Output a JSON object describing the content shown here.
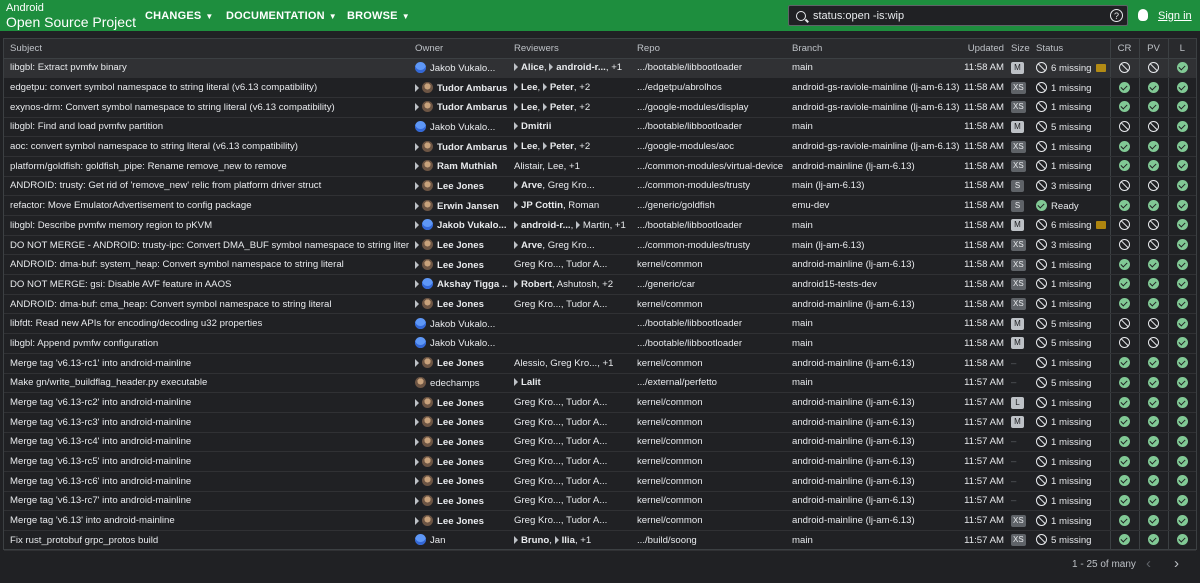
{
  "header": {
    "brand_line1": "Android",
    "brand_line2": "Open Source Project",
    "menus": [
      "CHANGES",
      "DOCUMENTATION",
      "BROWSE"
    ],
    "search_value": "status:open -is:wip",
    "help_glyph": "?",
    "signin": "Sign in"
  },
  "columns": [
    "Subject",
    "Owner",
    "Reviewers",
    "Repo",
    "Branch",
    "Updated",
    "Size",
    "Status",
    "CR",
    "PV",
    "L"
  ],
  "rows": [
    {
      "subject": "libgbl: Extract pvmfw binary",
      "owner": "Jakob Vukalo...",
      "owner_bold": false,
      "owner_arrow": false,
      "avatar": "blue",
      "reviewers": [
        {
          "n": "Alice",
          "b": true,
          "a": true
        },
        {
          "n": "android-r...",
          "b": true,
          "a": true
        },
        {
          "n": "+1",
          "b": false,
          "a": false
        }
      ],
      "repo": ".../bootable/libbootloader",
      "branch": "main",
      "updated": "11:58 AM",
      "size": "M",
      "status": "6 missing",
      "status_ok": false,
      "comment": true,
      "hl": true
    },
    {
      "subject": "edgetpu: convert symbol namespace to string literal (v6.13 compatibility)",
      "owner": "Tudor Ambarus",
      "owner_bold": true,
      "owner_arrow": true,
      "avatar": "photo",
      "reviewers": [
        {
          "n": "Lee",
          "b": true,
          "a": true
        },
        {
          "n": "Peter",
          "b": true,
          "a": true
        },
        {
          "n": "+2",
          "b": false,
          "a": false
        }
      ],
      "repo": ".../edgetpu/abrolhos",
      "branch": "android-gs-raviole-mainline (lj-am-6.13)",
      "updated": "11:58 AM",
      "size": "XS",
      "status": "1 missing",
      "status_ok": false,
      "comment": false,
      "hl": false
    },
    {
      "subject": "exynos-drm: Convert symbol namespace to string literal (v6.13 compatibility)",
      "owner": "Tudor Ambarus",
      "owner_bold": true,
      "owner_arrow": true,
      "avatar": "photo",
      "reviewers": [
        {
          "n": "Lee",
          "b": true,
          "a": true
        },
        {
          "n": "Peter",
          "b": true,
          "a": true
        },
        {
          "n": "+2",
          "b": false,
          "a": false
        }
      ],
      "repo": ".../google-modules/display",
      "branch": "android-gs-raviole-mainline (lj-am-6.13)",
      "updated": "11:58 AM",
      "size": "XS",
      "status": "1 missing",
      "status_ok": false,
      "comment": false,
      "hl": false
    },
    {
      "subject": "libgbl: Find and load pvmfw partition",
      "owner": "Jakob Vukalo...",
      "owner_bold": false,
      "owner_arrow": false,
      "avatar": "blue",
      "reviewers": [
        {
          "n": "Dmitrii",
          "b": true,
          "a": true
        }
      ],
      "repo": ".../bootable/libbootloader",
      "branch": "main",
      "updated": "11:58 AM",
      "size": "M",
      "status": "5 missing",
      "status_ok": false,
      "comment": false,
      "hl": false
    },
    {
      "subject": "aoc: convert symbol namespace to string literal (v6.13 compatibility)",
      "owner": "Tudor Ambarus",
      "owner_bold": true,
      "owner_arrow": true,
      "avatar": "photo",
      "reviewers": [
        {
          "n": "Lee",
          "b": true,
          "a": true
        },
        {
          "n": "Peter",
          "b": true,
          "a": true
        },
        {
          "n": "+2",
          "b": false,
          "a": false
        }
      ],
      "repo": ".../google-modules/aoc",
      "branch": "android-gs-raviole-mainline (lj-am-6.13)",
      "updated": "11:58 AM",
      "size": "XS",
      "status": "1 missing",
      "status_ok": false,
      "comment": false,
      "hl": false
    },
    {
      "subject": "platform/goldfish: goldfish_pipe: Rename remove_new to remove",
      "owner": "Ram Muthiah",
      "owner_bold": true,
      "owner_arrow": true,
      "avatar": "photo",
      "reviewers": [
        {
          "n": "Alistair",
          "b": false,
          "a": false
        },
        {
          "n": "Lee",
          "b": false,
          "a": false
        },
        {
          "n": "+1",
          "b": false,
          "a": false
        }
      ],
      "repo": ".../common-modules/virtual-device",
      "branch": "android-mainline (lj-am-6.13)",
      "updated": "11:58 AM",
      "size": "XS",
      "status": "1 missing",
      "status_ok": false,
      "comment": false,
      "hl": false
    },
    {
      "subject": "ANDROID: trusty: Get rid of 'remove_new' relic from platform driver struct",
      "owner": "Lee Jones",
      "owner_bold": true,
      "owner_arrow": true,
      "avatar": "photo",
      "reviewers": [
        {
          "n": "Arve",
          "b": true,
          "a": true
        },
        {
          "n": "Greg Kro...",
          "b": false,
          "a": false
        }
      ],
      "repo": ".../common-modules/trusty",
      "branch": "main (lj-am-6.13)",
      "updated": "11:58 AM",
      "size": "S",
      "status": "3 missing",
      "status_ok": false,
      "comment": false,
      "hl": false
    },
    {
      "subject": "refactor: Move EmulatorAdvertisement to config package",
      "owner": "Erwin Jansen",
      "owner_bold": true,
      "owner_arrow": true,
      "avatar": "photo",
      "reviewers": [
        {
          "n": "JP Cottin",
          "b": true,
          "a": true
        },
        {
          "n": "Roman",
          "b": false,
          "a": false
        }
      ],
      "repo": ".../generic/goldfish",
      "branch": "emu-dev",
      "updated": "11:58 AM",
      "size": "S",
      "status": "Ready",
      "status_ok": true,
      "comment": false,
      "hl": false
    },
    {
      "subject": "libgbl: Describe pvmfw memory region to pKVM",
      "owner": "Jakob Vukalo...",
      "owner_bold": true,
      "owner_arrow": true,
      "avatar": "blue",
      "reviewers": [
        {
          "n": "android-r...",
          "b": true,
          "a": true
        },
        {
          "n": "Martin",
          "b": false,
          "a": true
        },
        {
          "n": "+1",
          "b": false,
          "a": false
        }
      ],
      "repo": ".../bootable/libbootloader",
      "branch": "main",
      "updated": "11:58 AM",
      "size": "M",
      "status": "6 missing",
      "status_ok": false,
      "comment": true,
      "hl": false
    },
    {
      "subject": "DO NOT MERGE - ANDROID: trusty-ipc: Convert DMA_BUF symbol namespace to string literal",
      "owner": "Lee Jones",
      "owner_bold": true,
      "owner_arrow": true,
      "avatar": "photo",
      "reviewers": [
        {
          "n": "Arve",
          "b": true,
          "a": true
        },
        {
          "n": "Greg Kro...",
          "b": false,
          "a": false
        }
      ],
      "repo": ".../common-modules/trusty",
      "branch": "main (lj-am-6.13)",
      "updated": "11:58 AM",
      "size": "XS",
      "status": "3 missing",
      "status_ok": false,
      "comment": false,
      "hl": false
    },
    {
      "subject": "ANDROID: dma-buf: system_heap: Convert symbol namespace to string literal",
      "owner": "Lee Jones",
      "owner_bold": true,
      "owner_arrow": true,
      "avatar": "photo",
      "reviewers": [
        {
          "n": "Greg Kro...",
          "b": false,
          "a": false
        },
        {
          "n": "Tudor A...",
          "b": false,
          "a": false
        }
      ],
      "repo": "kernel/common",
      "branch": "android-mainline (lj-am-6.13)",
      "updated": "11:58 AM",
      "size": "XS",
      "status": "1 missing",
      "status_ok": false,
      "comment": false,
      "hl": false
    },
    {
      "subject": "DO NOT MERGE: gsi: Disable AVF feature in AAOS",
      "owner": "Akshay Tigga ...",
      "owner_bold": true,
      "owner_arrow": true,
      "avatar": "blue",
      "reviewers": [
        {
          "n": "Robert",
          "b": true,
          "a": true
        },
        {
          "n": "Ashutosh",
          "b": false,
          "a": false
        },
        {
          "n": "+2",
          "b": false,
          "a": false
        }
      ],
      "repo": ".../generic/car",
      "branch": "android15-tests-dev",
      "updated": "11:58 AM",
      "size": "XS",
      "status": "1 missing",
      "status_ok": false,
      "comment": false,
      "hl": false
    },
    {
      "subject": "ANDROID: dma-buf: cma_heap: Convert symbol namespace to string literal",
      "owner": "Lee Jones",
      "owner_bold": true,
      "owner_arrow": true,
      "avatar": "photo",
      "reviewers": [
        {
          "n": "Greg Kro...",
          "b": false,
          "a": false
        },
        {
          "n": "Tudor A...",
          "b": false,
          "a": false
        }
      ],
      "repo": "kernel/common",
      "branch": "android-mainline (lj-am-6.13)",
      "updated": "11:58 AM",
      "size": "XS",
      "status": "1 missing",
      "status_ok": false,
      "comment": false,
      "hl": false
    },
    {
      "subject": "libfdt: Read new APIs for encoding/decoding u32 properties",
      "owner": "Jakob Vukalo...",
      "owner_bold": false,
      "owner_arrow": false,
      "avatar": "blue",
      "reviewers": [],
      "repo": ".../bootable/libbootloader",
      "branch": "main",
      "updated": "11:58 AM",
      "size": "M",
      "status": "5 missing",
      "status_ok": false,
      "comment": false,
      "hl": false
    },
    {
      "subject": "libgbl: Append pvmfw configuration",
      "owner": "Jakob Vukalo...",
      "owner_bold": false,
      "owner_arrow": false,
      "avatar": "blue",
      "reviewers": [],
      "repo": ".../bootable/libbootloader",
      "branch": "main",
      "updated": "11:58 AM",
      "size": "M",
      "status": "5 missing",
      "status_ok": false,
      "comment": false,
      "hl": false
    },
    {
      "subject": "Merge tag 'v6.13-rc1' into android-mainline",
      "owner": "Lee Jones",
      "owner_bold": true,
      "owner_arrow": true,
      "avatar": "photo",
      "reviewers": [
        {
          "n": "Alessio",
          "b": false,
          "a": false
        },
        {
          "n": "Greg Kro...",
          "b": false,
          "a": false
        },
        {
          "n": "+1",
          "b": false,
          "a": false
        }
      ],
      "repo": "kernel/common",
      "branch": "android-mainline (lj-am-6.13)",
      "updated": "11:58 AM",
      "size": "",
      "status": "1 missing",
      "status_ok": false,
      "comment": false,
      "hl": false
    },
    {
      "subject": "Make gn/write_buildflag_header.py executable",
      "owner": "edechamps",
      "owner_bold": false,
      "owner_arrow": false,
      "avatar": "photo",
      "reviewers": [
        {
          "n": "Lalit",
          "b": true,
          "a": true
        }
      ],
      "repo": ".../external/perfetto",
      "branch": "main",
      "updated": "11:57 AM",
      "size": "",
      "status": "5 missing",
      "status_ok": false,
      "comment": false,
      "hl": false
    },
    {
      "subject": "Merge tag 'v6.13-rc2' into android-mainline",
      "owner": "Lee Jones",
      "owner_bold": true,
      "owner_arrow": true,
      "avatar": "photo",
      "reviewers": [
        {
          "n": "Greg Kro...",
          "b": false,
          "a": false
        },
        {
          "n": "Tudor A...",
          "b": false,
          "a": false
        }
      ],
      "repo": "kernel/common",
      "branch": "android-mainline (lj-am-6.13)",
      "updated": "11:57 AM",
      "size": "L",
      "status": "1 missing",
      "status_ok": false,
      "comment": false,
      "hl": false
    },
    {
      "subject": "Merge tag 'v6.13-rc3' into android-mainline",
      "owner": "Lee Jones",
      "owner_bold": true,
      "owner_arrow": true,
      "avatar": "photo",
      "reviewers": [
        {
          "n": "Greg Kro...",
          "b": false,
          "a": false
        },
        {
          "n": "Tudor A...",
          "b": false,
          "a": false
        }
      ],
      "repo": "kernel/common",
      "branch": "android-mainline (lj-am-6.13)",
      "updated": "11:57 AM",
      "size": "M",
      "status": "1 missing",
      "status_ok": false,
      "comment": false,
      "hl": false
    },
    {
      "subject": "Merge tag 'v6.13-rc4' into android-mainline",
      "owner": "Lee Jones",
      "owner_bold": true,
      "owner_arrow": true,
      "avatar": "photo",
      "reviewers": [
        {
          "n": "Greg Kro...",
          "b": false,
          "a": false
        },
        {
          "n": "Tudor A...",
          "b": false,
          "a": false
        }
      ],
      "repo": "kernel/common",
      "branch": "android-mainline (lj-am-6.13)",
      "updated": "11:57 AM",
      "size": "",
      "status": "1 missing",
      "status_ok": false,
      "comment": false,
      "hl": false
    },
    {
      "subject": "Merge tag 'v6.13-rc5' into android-mainline",
      "owner": "Lee Jones",
      "owner_bold": true,
      "owner_arrow": true,
      "avatar": "photo",
      "reviewers": [
        {
          "n": "Greg Kro...",
          "b": false,
          "a": false
        },
        {
          "n": "Tudor A...",
          "b": false,
          "a": false
        }
      ],
      "repo": "kernel/common",
      "branch": "android-mainline (lj-am-6.13)",
      "updated": "11:57 AM",
      "size": "",
      "status": "1 missing",
      "status_ok": false,
      "comment": false,
      "hl": false
    },
    {
      "subject": "Merge tag 'v6.13-rc6' into android-mainline",
      "owner": "Lee Jones",
      "owner_bold": true,
      "owner_arrow": true,
      "avatar": "photo",
      "reviewers": [
        {
          "n": "Greg Kro...",
          "b": false,
          "a": false
        },
        {
          "n": "Tudor A...",
          "b": false,
          "a": false
        }
      ],
      "repo": "kernel/common",
      "branch": "android-mainline (lj-am-6.13)",
      "updated": "11:57 AM",
      "size": "",
      "status": "1 missing",
      "status_ok": false,
      "comment": false,
      "hl": false
    },
    {
      "subject": "Merge tag 'v6.13-rc7' into android-mainline",
      "owner": "Lee Jones",
      "owner_bold": true,
      "owner_arrow": true,
      "avatar": "photo",
      "reviewers": [
        {
          "n": "Greg Kro...",
          "b": false,
          "a": false
        },
        {
          "n": "Tudor A...",
          "b": false,
          "a": false
        }
      ],
      "repo": "kernel/common",
      "branch": "android-mainline (lj-am-6.13)",
      "updated": "11:57 AM",
      "size": "",
      "status": "1 missing",
      "status_ok": false,
      "comment": false,
      "hl": false
    },
    {
      "subject": "Merge tag 'v6.13' into android-mainline",
      "owner": "Lee Jones",
      "owner_bold": true,
      "owner_arrow": true,
      "avatar": "photo",
      "reviewers": [
        {
          "n": "Greg Kro...",
          "b": false,
          "a": false
        },
        {
          "n": "Tudor A...",
          "b": false,
          "a": false
        }
      ],
      "repo": "kernel/common",
      "branch": "android-mainline (lj-am-6.13)",
      "updated": "11:57 AM",
      "size": "XS",
      "status": "1 missing",
      "status_ok": false,
      "comment": false,
      "hl": false
    },
    {
      "subject": "Fix rust_protobuf grpc_protos build",
      "owner": "Jan",
      "owner_bold": false,
      "owner_arrow": false,
      "avatar": "blue",
      "reviewers": [
        {
          "n": "Bruno",
          "b": true,
          "a": true
        },
        {
          "n": "Ilia",
          "b": true,
          "a": true
        },
        {
          "n": "+1",
          "b": false,
          "a": false
        }
      ],
      "repo": ".../build/soong",
      "branch": "main",
      "updated": "11:57 AM",
      "size": "XS",
      "status": "5 missing",
      "status_ok": false,
      "comment": false,
      "hl": false
    }
  ],
  "footer": {
    "pager": "1 - 25 of many",
    "prev": "‹",
    "next": "›"
  }
}
